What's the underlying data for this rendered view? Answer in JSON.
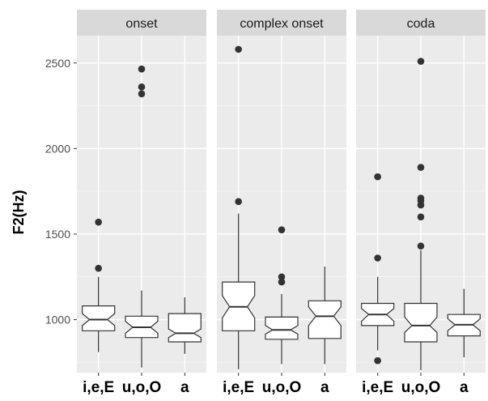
{
  "chart_data": {
    "type": "boxplot",
    "title": "",
    "xlabel": "",
    "ylabel": "F2(Hz)",
    "ylim": [
      690,
      2660
    ],
    "yticks": [
      1000,
      1500,
      2000,
      2500
    ],
    "notched": true,
    "grid": true,
    "categories": [
      "i,e,E",
      "u,o,O",
      "a"
    ],
    "facets": [
      {
        "label": "onset",
        "boxes": [
          {
            "category": "i,e,E",
            "whisker_low": 810,
            "q1": 935,
            "notch_low": 965,
            "median": 1000,
            "notch_high": 1035,
            "q3": 1080,
            "whisker_high": 1250,
            "outliers": [
              1300,
              1570
            ]
          },
          {
            "category": "u,o,O",
            "whisker_low": 720,
            "q1": 895,
            "notch_low": 920,
            "median": 955,
            "notch_high": 990,
            "q3": 1020,
            "whisker_high": 1170,
            "outliers": [
              2320,
              2360,
              2465
            ]
          },
          {
            "category": "a",
            "whisker_low": 800,
            "q1": 870,
            "notch_low": 895,
            "median": 920,
            "notch_high": 945,
            "q3": 1035,
            "whisker_high": 1130,
            "outliers": []
          }
        ]
      },
      {
        "label": "complex onset",
        "boxes": [
          {
            "category": "i,e,E",
            "whisker_low": 710,
            "q1": 935,
            "notch_low": 1010,
            "median": 1075,
            "notch_high": 1140,
            "q3": 1220,
            "whisker_high": 1620,
            "outliers": [
              1690,
              2580
            ]
          },
          {
            "category": "u,o,O",
            "whisker_low": 740,
            "q1": 885,
            "notch_low": 915,
            "median": 940,
            "notch_high": 965,
            "q3": 1015,
            "whisker_high": 1150,
            "outliers": [
              1220,
              1250,
              1525
            ]
          },
          {
            "category": "a",
            "whisker_low": 740,
            "q1": 890,
            "notch_low": 965,
            "median": 1020,
            "notch_high": 1075,
            "q3": 1110,
            "whisker_high": 1310,
            "outliers": []
          }
        ]
      },
      {
        "label": "coda",
        "boxes": [
          {
            "category": "i,e,E",
            "whisker_low": 820,
            "q1": 965,
            "notch_low": 990,
            "median": 1030,
            "notch_high": 1065,
            "q3": 1095,
            "whisker_high": 1250,
            "outliers": [
              760,
              1360,
              1835
            ]
          },
          {
            "category": "u,o,O",
            "whisker_low": 705,
            "q1": 870,
            "notch_low": 925,
            "median": 965,
            "notch_high": 1015,
            "q3": 1095,
            "whisker_high": 1405,
            "outliers": [
              1430,
              1600,
              1670,
              1695,
              1710,
              1890,
              2510
            ]
          },
          {
            "category": "a",
            "whisker_low": 780,
            "q1": 905,
            "notch_low": 935,
            "median": 970,
            "notch_high": 1005,
            "q3": 1030,
            "whisker_high": 1180,
            "outliers": []
          }
        ]
      }
    ]
  }
}
